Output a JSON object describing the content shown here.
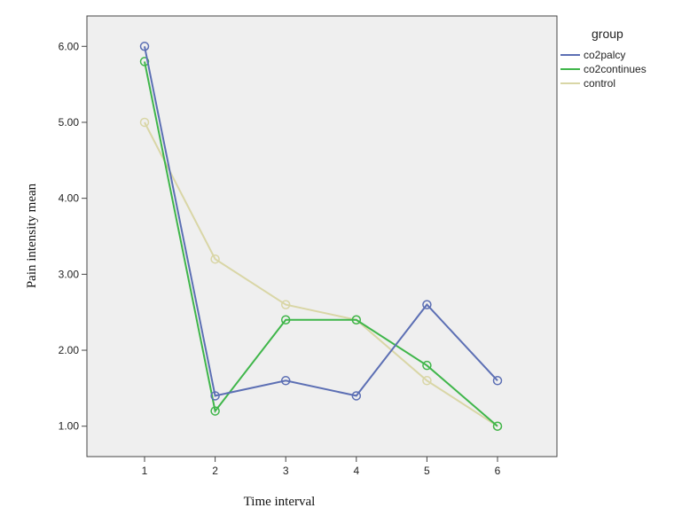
{
  "chart_data": {
    "type": "line",
    "xlabel": "Time interval",
    "ylabel": "Pain intensity mean",
    "x": [
      1,
      2,
      3,
      4,
      5,
      6
    ],
    "x_tick_labels": [
      "1",
      "2",
      "3",
      "4",
      "5",
      "6"
    ],
    "ylim": [
      0.6,
      6.4
    ],
    "y_ticks": [
      1,
      2,
      3,
      4,
      5,
      6
    ],
    "y_tick_labels": [
      "1.00",
      "2.00",
      "3.00",
      "4.00",
      "5.00",
      "6.00"
    ],
    "grid": false,
    "legend_title": "group",
    "legend_position": "top-right outside plot",
    "series": [
      {
        "name": "co2palcy",
        "color": "#5c6fb4",
        "values": [
          6.0,
          1.4,
          1.6,
          1.4,
          2.6,
          1.6
        ]
      },
      {
        "name": "co2continues",
        "color": "#3fb64a",
        "values": [
          5.8,
          1.2,
          2.4,
          2.4,
          1.8,
          1.0
        ]
      },
      {
        "name": "control",
        "color": "#d9d6a6",
        "values": [
          5.0,
          3.2,
          2.6,
          2.4,
          1.6,
          1.0
        ]
      }
    ],
    "colors": {
      "plot_background": "#efefef",
      "frame": "#444444"
    }
  }
}
